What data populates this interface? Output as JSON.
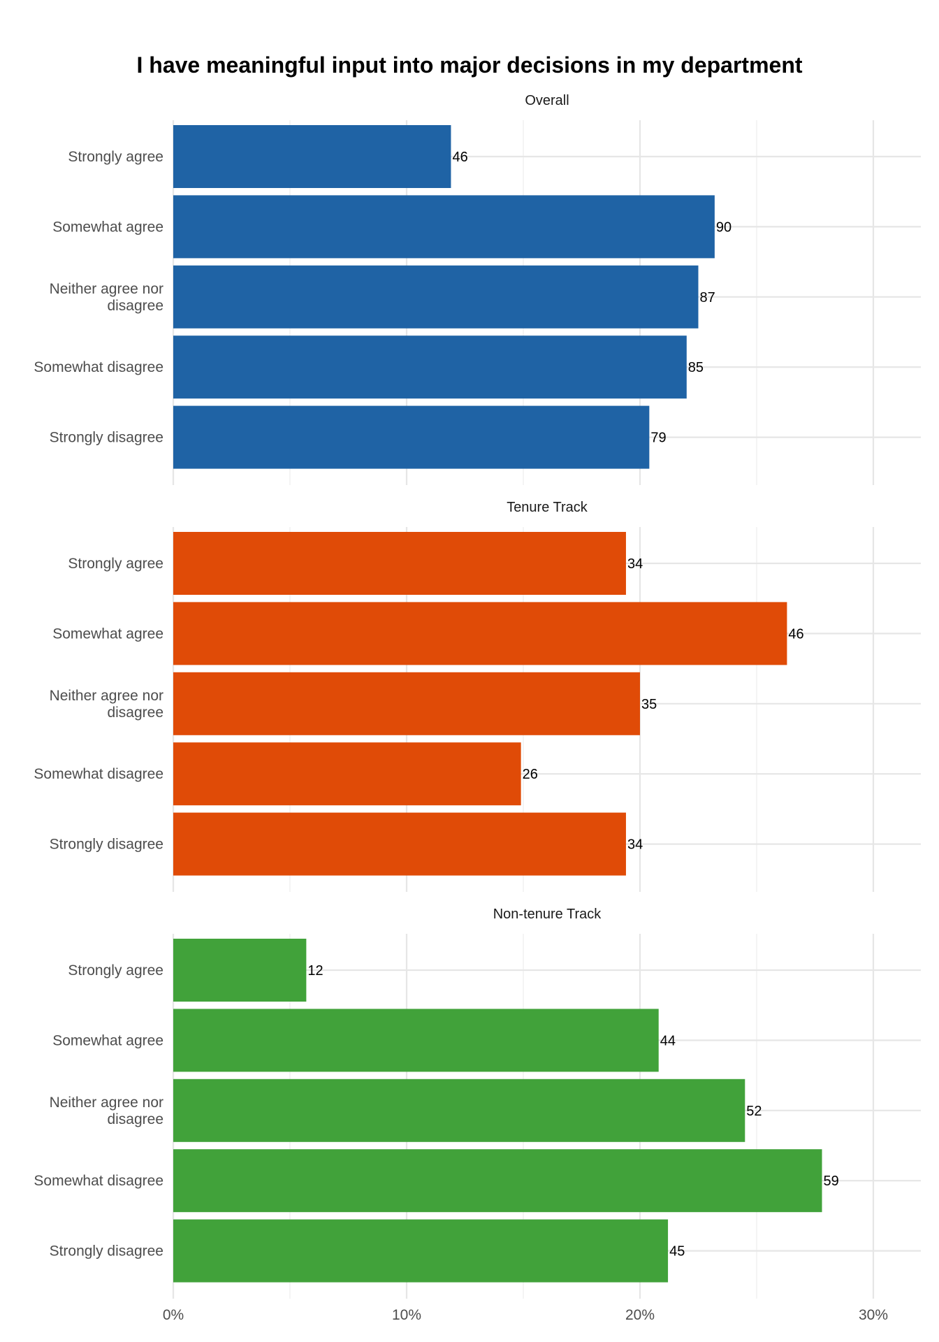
{
  "chart_data": {
    "type": "bar",
    "orientation": "horizontal",
    "title": "I have meaningful input into major decisions in my department",
    "xlabel": "",
    "ylabel": "",
    "xlim": [
      0,
      0.32
    ],
    "x_ticks": [
      {
        "value": 0,
        "label": "0%"
      },
      {
        "value": 0.1,
        "label": "10%"
      },
      {
        "value": 0.2,
        "label": "20%"
      },
      {
        "value": 0.3,
        "label": "30%"
      }
    ],
    "grid": true,
    "legend": "none",
    "categories": [
      "Strongly agree",
      "Somewhat agree",
      "Neither agree nor disagree",
      "Somewhat disagree",
      "Strongly disagree"
    ],
    "category_lines": [
      [
        "Strongly agree"
      ],
      [
        "Somewhat agree"
      ],
      [
        "Neither agree nor",
        "disagree"
      ],
      [
        "Somewhat disagree"
      ],
      [
        "Strongly disagree"
      ]
    ],
    "panels": [
      {
        "facet": "Overall",
        "color": "#1f63a5",
        "counts": [
          46,
          90,
          87,
          85,
          79
        ],
        "proportions": [
          0.119,
          0.232,
          0.225,
          0.22,
          0.204
        ]
      },
      {
        "facet": "Tenure Track",
        "color": "#e04b07",
        "counts": [
          34,
          46,
          35,
          26,
          34
        ],
        "proportions": [
          0.194,
          0.263,
          0.2,
          0.149,
          0.194
        ]
      },
      {
        "facet": "Non-tenure Track",
        "color": "#41a23a",
        "counts": [
          12,
          44,
          52,
          59,
          45
        ],
        "proportions": [
          0.057,
          0.208,
          0.245,
          0.278,
          0.212
        ]
      }
    ]
  }
}
